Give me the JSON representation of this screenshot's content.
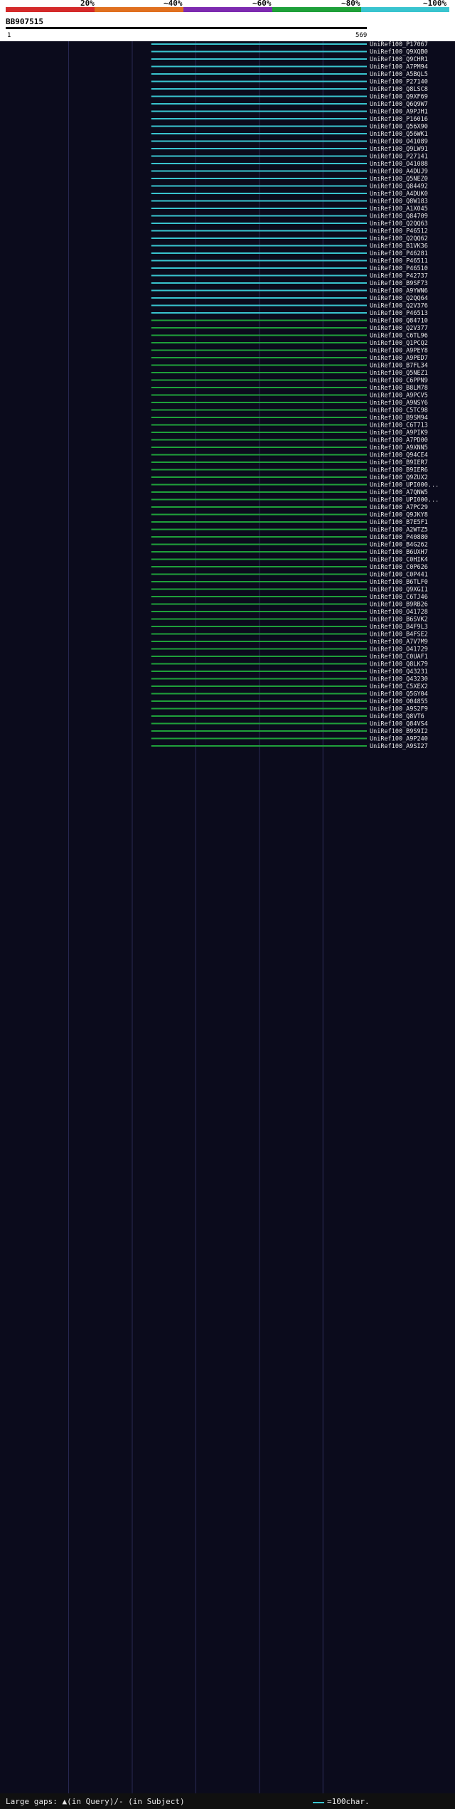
{
  "legend": {
    "ticks": [
      "20%",
      "~40%",
      "~60%",
      "~80%",
      "~100%"
    ],
    "colors": [
      "#d42a2a",
      "#e07020",
      "#7d2bb0",
      "#1fa03a",
      "#39c4cf"
    ]
  },
  "query": {
    "name": "BB907515",
    "start_label": "1",
    "end_label": "569",
    "length": 569
  },
  "footer": {
    "gaps_text": "Large gaps: ▲(in Query)/- (in Subject)",
    "scale_text": "=100char."
  },
  "chart_data": {
    "type": "alignment",
    "x_range": [
      1,
      569
    ],
    "identity_colors": {
      "cyan": "#39c4cf",
      "green": "#1fa03a",
      "magenta": "#c03cc0"
    },
    "hits": [
      {
        "id": "UniRef100_P17067",
        "start": 230,
        "end": 569,
        "color": "cyan"
      },
      {
        "id": "UniRef100_Q9XQB0",
        "start": 230,
        "end": 569,
        "color": "cyan"
      },
      {
        "id": "UniRef100_Q9CHR1",
        "start": 230,
        "end": 569,
        "color": "cyan"
      },
      {
        "id": "UniRef100_A7PM94",
        "start": 230,
        "end": 569,
        "color": "cyan"
      },
      {
        "id": "UniRef100_A5BQL5",
        "start": 230,
        "end": 569,
        "color": "cyan"
      },
      {
        "id": "UniRef100_P27140",
        "start": 230,
        "end": 569,
        "color": "cyan"
      },
      {
        "id": "UniRef100_Q8LSC8",
        "start": 230,
        "end": 569,
        "color": "cyan"
      },
      {
        "id": "UniRef100_Q9XF69",
        "start": 230,
        "end": 569,
        "color": "cyan"
      },
      {
        "id": "UniRef100_Q6Q9W7",
        "start": 230,
        "end": 569,
        "color": "cyan"
      },
      {
        "id": "UniRef100_A9PJH1",
        "start": 230,
        "end": 569,
        "color": "cyan"
      },
      {
        "id": "UniRef100_P16016",
        "start": 230,
        "end": 569,
        "color": "cyan"
      },
      {
        "id": "UniRef100_Q56X90",
        "start": 230,
        "end": 569,
        "color": "cyan"
      },
      {
        "id": "UniRef100_Q56WK1",
        "start": 230,
        "end": 569,
        "color": "cyan"
      },
      {
        "id": "UniRef100_O41089",
        "start": 230,
        "end": 569,
        "color": "cyan"
      },
      {
        "id": "UniRef100_Q9LW91",
        "start": 230,
        "end": 569,
        "color": "cyan"
      },
      {
        "id": "UniRef100_P27141",
        "start": 230,
        "end": 569,
        "color": "cyan"
      },
      {
        "id": "UniRef100_O41088",
        "start": 230,
        "end": 569,
        "color": "cyan"
      },
      {
        "id": "UniRef100_A4DUJ9",
        "start": 230,
        "end": 569,
        "color": "cyan"
      },
      {
        "id": "UniRef100_Q5NEZ0",
        "start": 230,
        "end": 569,
        "color": "cyan"
      },
      {
        "id": "UniRef100_Q84492",
        "start": 230,
        "end": 569,
        "color": "cyan"
      },
      {
        "id": "UniRef100_A4DUK0",
        "start": 230,
        "end": 569,
        "color": "cyan"
      },
      {
        "id": "UniRef100_Q8W183",
        "start": 230,
        "end": 569,
        "color": "cyan"
      },
      {
        "id": "UniRef100_A1X045",
        "start": 230,
        "end": 569,
        "color": "cyan"
      },
      {
        "id": "UniRef100_Q84709",
        "start": 230,
        "end": 569,
        "color": "cyan"
      },
      {
        "id": "UniRef100_Q2QQ63",
        "start": 230,
        "end": 569,
        "color": "cyan"
      },
      {
        "id": "UniRef100_P46512",
        "start": 230,
        "end": 569,
        "color": "cyan"
      },
      {
        "id": "UniRef100_Q2QQ62",
        "start": 230,
        "end": 569,
        "color": "cyan"
      },
      {
        "id": "UniRef100_B1VK36",
        "start": 230,
        "end": 569,
        "color": "cyan"
      },
      {
        "id": "UniRef100_P46281",
        "start": 230,
        "end": 569,
        "color": "cyan"
      },
      {
        "id": "UniRef100_P46511",
        "start": 230,
        "end": 569,
        "color": "cyan"
      },
      {
        "id": "UniRef100_P46510",
        "start": 230,
        "end": 569,
        "color": "cyan"
      },
      {
        "id": "UniRef100_P42737",
        "start": 230,
        "end": 569,
        "color": "cyan"
      },
      {
        "id": "UniRef100_B9SF73",
        "start": 230,
        "end": 569,
        "color": "cyan"
      },
      {
        "id": "UniRef100_A9YWN6",
        "start": 230,
        "end": 569,
        "color": "cyan"
      },
      {
        "id": "UniRef100_Q2QQ64",
        "start": 230,
        "end": 569,
        "color": "cyan"
      },
      {
        "id": "UniRef100_Q2V376",
        "start": 230,
        "end": 569,
        "color": "cyan"
      },
      {
        "id": "UniRef100_P46513",
        "start": 230,
        "end": 569,
        "color": "cyan"
      },
      {
        "id": "UniRef100_Q84710",
        "start": 230,
        "end": 569,
        "color": "green"
      },
      {
        "id": "UniRef100_Q2V377",
        "start": 230,
        "end": 569,
        "color": "green"
      },
      {
        "id": "UniRef100_C6TL96",
        "start": 230,
        "end": 569,
        "color": "green"
      },
      {
        "id": "UniRef100_Q1PCQ2",
        "start": 230,
        "end": 569,
        "color": "green"
      },
      {
        "id": "UniRef100_A9PEY8",
        "start": 230,
        "end": 569,
        "color": "green"
      },
      {
        "id": "UniRef100_A9PED7",
        "start": 230,
        "end": 569,
        "color": "green"
      },
      {
        "id": "UniRef100_B7FL34",
        "start": 230,
        "end": 569,
        "color": "green"
      },
      {
        "id": "UniRef100_Q5NEZ1",
        "start": 230,
        "end": 569,
        "color": "green"
      },
      {
        "id": "UniRef100_C6PPN9",
        "start": 230,
        "end": 569,
        "color": "green"
      },
      {
        "id": "UniRef100_B8LM78",
        "start": 230,
        "end": 569,
        "color": "green"
      },
      {
        "id": "UniRef100_A9PCV5",
        "start": 230,
        "end": 569,
        "color": "green"
      },
      {
        "id": "UniRef100_A9NSY6",
        "start": 230,
        "end": 569,
        "color": "green"
      },
      {
        "id": "UniRef100_C5TC98",
        "start": 230,
        "end": 569,
        "color": "green"
      },
      {
        "id": "UniRef100_B9SM94",
        "start": 230,
        "end": 569,
        "color": "green"
      },
      {
        "id": "UniRef100_C6T713",
        "start": 230,
        "end": 569,
        "color": "green"
      },
      {
        "id": "UniRef100_A9PIK9",
        "start": 230,
        "end": 569,
        "color": "green"
      },
      {
        "id": "UniRef100_A7PD00",
        "start": 230,
        "end": 569,
        "color": "green"
      },
      {
        "id": "UniRef100_A9XNN5",
        "start": 230,
        "end": 569,
        "color": "green"
      },
      {
        "id": "UniRef100_Q94CE4",
        "start": 230,
        "end": 569,
        "color": "green"
      },
      {
        "id": "UniRef100_B9IER7",
        "start": 230,
        "end": 569,
        "color": "green"
      },
      {
        "id": "UniRef100_B9IER6",
        "start": 230,
        "end": 569,
        "color": "green"
      },
      {
        "id": "UniRef100_Q9ZUX2",
        "start": 230,
        "end": 569,
        "color": "green"
      },
      {
        "id": "UniRef100_UPI000...",
        "start": 230,
        "end": 569,
        "color": "green"
      },
      {
        "id": "UniRef100_A7QNW5",
        "start": 230,
        "end": 569,
        "color": "green"
      },
      {
        "id": "UniRef100_UPI000...",
        "start": 230,
        "end": 569,
        "color": "green"
      },
      {
        "id": "UniRef100_A7PC29",
        "start": 230,
        "end": 569,
        "color": "green"
      },
      {
        "id": "UniRef100_Q9JKY8",
        "start": 230,
        "end": 569,
        "color": "green"
      },
      {
        "id": "UniRef100_B7E5F1",
        "start": 230,
        "end": 569,
        "color": "green"
      },
      {
        "id": "UniRef100_A2WTZ5",
        "start": 230,
        "end": 569,
        "color": "green"
      },
      {
        "id": "UniRef100_P40880",
        "start": 230,
        "end": 569,
        "color": "green"
      },
      {
        "id": "UniRef100_B4G262",
        "start": 230,
        "end": 569,
        "color": "green"
      },
      {
        "id": "UniRef100_B6UXH7",
        "start": 230,
        "end": 569,
        "color": "green"
      },
      {
        "id": "UniRef100_C0HIK4",
        "start": 230,
        "end": 569,
        "color": "green"
      },
      {
        "id": "UniRef100_C0P626",
        "start": 230,
        "end": 569,
        "color": "green"
      },
      {
        "id": "UniRef100_C0P441",
        "start": 230,
        "end": 569,
        "color": "green"
      },
      {
        "id": "UniRef100_B6TLF0",
        "start": 230,
        "end": 569,
        "color": "green"
      },
      {
        "id": "UniRef100_Q9XGI1",
        "start": 230,
        "end": 569,
        "color": "green"
      },
      {
        "id": "UniRef100_C6TJ46",
        "start": 230,
        "end": 569,
        "color": "green"
      },
      {
        "id": "UniRef100_B9RB26",
        "start": 230,
        "end": 569,
        "color": "green"
      },
      {
        "id": "UniRef100_O41728",
        "start": 230,
        "end": 569,
        "color": "green"
      },
      {
        "id": "UniRef100_B6SVK2",
        "start": 230,
        "end": 569,
        "color": "green"
      },
      {
        "id": "UniRef100_B4F9L3",
        "start": 230,
        "end": 569,
        "color": "green"
      },
      {
        "id": "UniRef100_B4FSE2",
        "start": 230,
        "end": 569,
        "color": "green"
      },
      {
        "id": "UniRef100_A7V7M9",
        "start": 230,
        "end": 569,
        "color": "green"
      },
      {
        "id": "UniRef100_O41729",
        "start": 230,
        "end": 569,
        "color": "green"
      },
      {
        "id": "UniRef100_C0UAF1",
        "start": 230,
        "end": 569,
        "color": "green"
      },
      {
        "id": "UniRef100_Q8LK79",
        "start": 230,
        "end": 569,
        "color": "green"
      },
      {
        "id": "UniRef100_Q43231",
        "start": 230,
        "end": 569,
        "color": "green"
      },
      {
        "id": "UniRef100_Q43230",
        "start": 230,
        "end": 569,
        "color": "green"
      },
      {
        "id": "UniRef100_C5XEX2",
        "start": 230,
        "end": 569,
        "color": "green"
      },
      {
        "id": "UniRef100_Q5GY04",
        "start": 230,
        "end": 569,
        "color": "green"
      },
      {
        "id": "UniRef100_O04855",
        "start": 230,
        "end": 569,
        "color": "green"
      },
      {
        "id": "UniRef100_A9S2F9",
        "start": 230,
        "end": 569,
        "color": "green"
      },
      {
        "id": "UniRef100_Q8VT6",
        "start": 230,
        "end": 569,
        "color": "green"
      },
      {
        "id": "UniRef100_Q84VS4",
        "start": 230,
        "end": 569,
        "color": "green"
      },
      {
        "id": "UniRef100_B9S9I2",
        "start": 230,
        "end": 569,
        "color": "green"
      },
      {
        "id": "UniRef100_A9P240",
        "start": 230,
        "end": 569,
        "color": "green"
      },
      {
        "id": "UniRef100_A9SI27",
        "start": 230,
        "end": 569,
        "color": "green"
      }
    ]
  }
}
